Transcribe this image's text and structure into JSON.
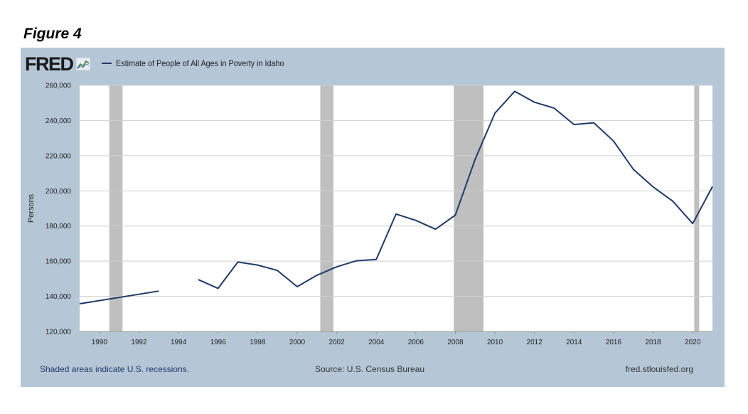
{
  "figure_label": "Figure 4",
  "header": {
    "logo_text": "FRED",
    "logo_icon": "fred-graph-icon"
  },
  "footer": {
    "recession_note": "Shaded areas indicate U.S. recessions.",
    "source": "Source: U.S. Census Bureau",
    "site": "fred.stlouisfed.org"
  },
  "colors": {
    "panel_background": "#b5c7d7",
    "plot_background": "#ffffff",
    "series_line": "#1f3a68",
    "recession_shade": "#bfbfbf",
    "grid": "#cfcfcf"
  },
  "chart_data": {
    "type": "line",
    "title": "",
    "xlabel": "",
    "ylabel": "Persons",
    "xlim": [
      1989,
      2021
    ],
    "ylim": [
      120000,
      260000
    ],
    "x_ticks": [
      1990,
      1992,
      1994,
      1996,
      1998,
      2000,
      2002,
      2004,
      2006,
      2008,
      2010,
      2012,
      2014,
      2016,
      2018,
      2020
    ],
    "y_ticks": [
      120000,
      140000,
      160000,
      180000,
      200000,
      220000,
      240000,
      260000
    ],
    "y_tick_labels": [
      "120,000",
      "140,000",
      "160,000",
      "180,000",
      "200,000",
      "220,000",
      "240,000",
      "260,000"
    ],
    "grid": true,
    "legend_position": "top-left",
    "recessions": [
      {
        "start": 1990.5,
        "end": 1991.17
      },
      {
        "start": 2001.17,
        "end": 2001.83
      },
      {
        "start": 2007.92,
        "end": 2009.42
      },
      {
        "start": 2020.08,
        "end": 2020.33
      }
    ],
    "series": [
      {
        "name": "Estimate of People of All Ages in Poverty in Idaho",
        "segments": [
          {
            "x": [
              1989,
              1993
            ],
            "y": [
              135800,
              143000
            ]
          },
          {
            "x": [
              1995,
              1996,
              1997,
              1998,
              1999,
              2000,
              2001,
              2002,
              2003,
              2004,
              2005,
              2006,
              2007,
              2008,
              2009,
              2010,
              2011,
              2012,
              2013,
              2014,
              2015,
              2016,
              2017,
              2018,
              2019,
              2020,
              2021
            ],
            "y": [
              149500,
              144500,
              159500,
              157800,
              154700,
              145500,
              152000,
              156800,
              160200,
              161000,
              186800,
              183200,
              178200,
              186200,
              218000,
              244200,
              256600,
              250400,
              247000,
              237700,
              238700,
              228300,
              212200,
              202200,
              194100,
              181400,
              202400
            ]
          }
        ]
      }
    ]
  }
}
